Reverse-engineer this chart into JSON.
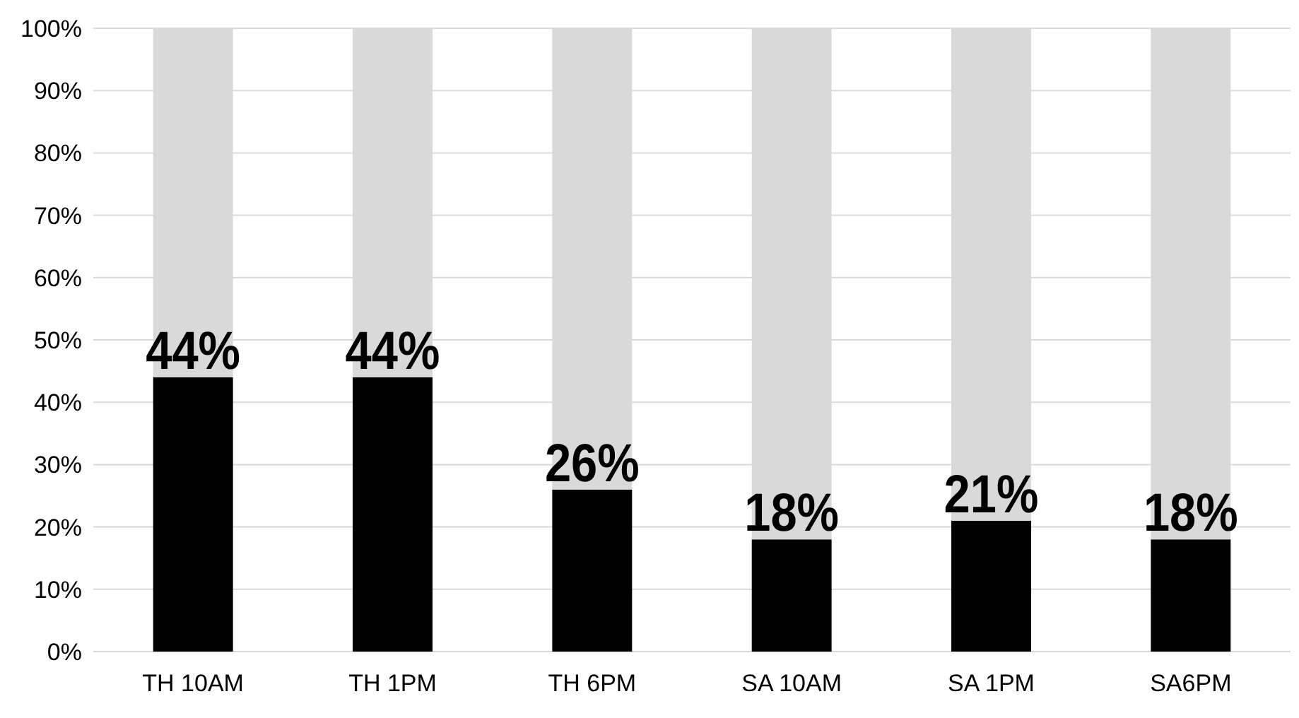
{
  "chart_data": {
    "type": "bar",
    "stacked": true,
    "categories": [
      "TH 10AM",
      "TH 1PM",
      "TH 6PM",
      "SA 10AM",
      "SA 1PM",
      "SA6PM"
    ],
    "series": [
      {
        "color": "#000000",
        "values": [
          44,
          44,
          26,
          18,
          21,
          18
        ],
        "value_labels": [
          "44%",
          "44%",
          "26%",
          "18%",
          "21%",
          "18%"
        ]
      },
      {
        "color": "#d9d9d9",
        "values": [
          56,
          56,
          74,
          82,
          79,
          82
        ]
      }
    ],
    "ylim": [
      0,
      100
    ],
    "yticks": [
      {
        "value": 0,
        "label": "0%"
      },
      {
        "value": 10,
        "label": "10%"
      },
      {
        "value": 20,
        "label": "20%"
      },
      {
        "value": 30,
        "label": "30%"
      },
      {
        "value": 40,
        "label": "40%"
      },
      {
        "value": 50,
        "label": "50%"
      },
      {
        "value": 60,
        "label": "60%"
      },
      {
        "value": 70,
        "label": "70%"
      },
      {
        "value": 80,
        "label": "80%"
      },
      {
        "value": 90,
        "label": "90%"
      },
      {
        "value": 100,
        "label": "100%"
      }
    ],
    "grid": "y"
  }
}
